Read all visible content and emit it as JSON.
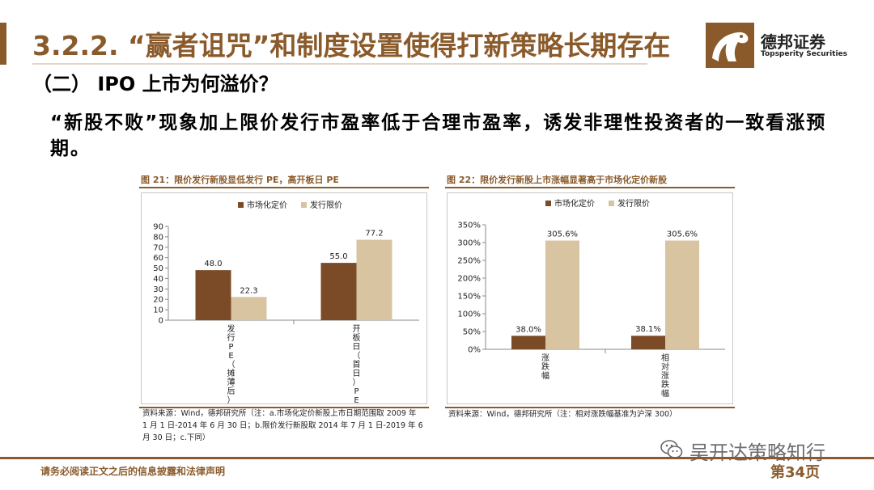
{
  "header": {
    "title": "3.2.2. “赢者诅咒”和制度设置使得打新策略长期存在",
    "brand_cn": "德邦证券",
    "brand_en": "Topsperity Securities"
  },
  "subtitle": "（二） IPO 上市为何溢价？",
  "body_text": "“新股不败”现象加上限价发行市盈率低于合理市盈率，诱发非理性投资者的一致看涨预期。",
  "colors": {
    "market": "#7b4a26",
    "issue": "#d8c4a0",
    "accent": "#8a5a2b"
  },
  "figure21": {
    "caption": "图 21：限价发行新股显低发行 PE，高开板日 PE",
    "source_lines": [
      "资料来源：Wind，德邦研究所（注：a.市场化定价新股上市日期范围取 2009 年",
      "1 月 1 日-2014 年 6 月 30 日；b.限价发行新股取 2014 年 7 月 1 日-2019 年 6",
      "月 30 日；c.下同）"
    ]
  },
  "figure22": {
    "caption": "图 22：限价发行新股上市涨幅显著高于市场化定价新股",
    "source_lines": [
      "资料来源：Wind，德邦研究所（注：相对涨跌幅基准为沪深 300）"
    ]
  },
  "chart_data": [
    {
      "type": "bar",
      "categories": [
        "发行PE（摊薄后）",
        "开板日（首日）PE"
      ],
      "series": [
        {
          "name": "市场化定价",
          "values": [
            48.0,
            55.0
          ]
        },
        {
          "name": "发行限价",
          "values": [
            22.3,
            77.2
          ]
        }
      ],
      "data_labels": [
        [
          "48.0",
          "55.0"
        ],
        [
          "22.3",
          "77.2"
        ]
      ],
      "ylim": [
        0,
        90
      ],
      "yticks": [
        "0",
        "10",
        "20",
        "30",
        "40",
        "50",
        "60",
        "70",
        "80",
        "90"
      ],
      "legend": "top"
    },
    {
      "type": "bar",
      "categories": [
        "涨跌幅",
        "相对涨跌幅"
      ],
      "series": [
        {
          "name": "市场化定价",
          "values": [
            38.0,
            38.1
          ]
        },
        {
          "name": "发行限价",
          "values": [
            305.6,
            305.6
          ]
        }
      ],
      "data_labels": [
        [
          "38.0%",
          "38.1%"
        ],
        [
          "305.6%",
          "305.6%"
        ]
      ],
      "ylim": [
        0,
        350
      ],
      "yticks": [
        "0%",
        "50%",
        "100%",
        "150%",
        "200%",
        "250%",
        "300%",
        "350%"
      ],
      "legend": "top"
    }
  ],
  "footer": {
    "disclaimer": "请务必阅读正文之后的信息披露和法律声明",
    "page": "第34页"
  },
  "watermark": {
    "text": "吴开达策略知行"
  }
}
